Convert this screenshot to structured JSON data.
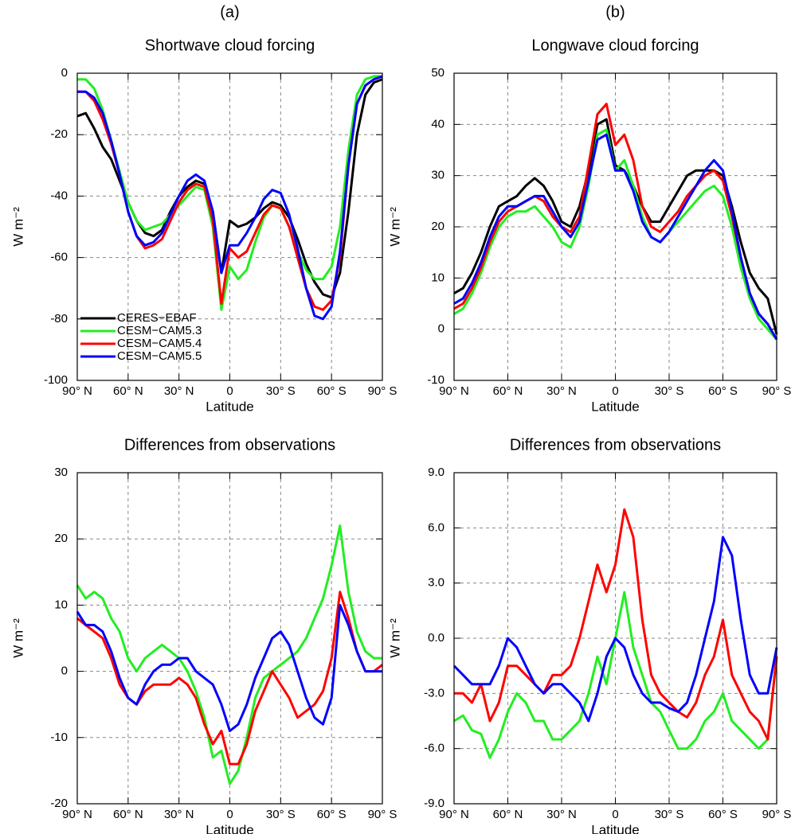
{
  "chart_data": [
    {
      "type": "line",
      "panel_label": "(a)",
      "title": "Shortwave cloud forcing",
      "xlabel": "Latitude",
      "ylabel": "W m⁻²",
      "x": [
        90,
        85,
        80,
        75,
        70,
        65,
        60,
        55,
        50,
        45,
        40,
        35,
        30,
        25,
        20,
        15,
        10,
        5,
        0,
        -5,
        -10,
        -15,
        -20,
        -25,
        -30,
        -35,
        -40,
        -45,
        -50,
        -55,
        -60,
        -65,
        -70,
        -75,
        -80,
        -85,
        -90
      ],
      "xlim": [
        90,
        -90
      ],
      "xticks": [
        {
          "value": 90,
          "label": "90° N"
        },
        {
          "value": 60,
          "label": "60° N"
        },
        {
          "value": 30,
          "label": "30° N"
        },
        0,
        {
          "value": -30,
          "label": "30° S"
        },
        {
          "value": -60,
          "label": "60° S"
        },
        {
          "value": -90,
          "label": "90° S"
        }
      ],
      "ylim": [
        -100,
        0
      ],
      "yticks": [
        -100,
        -80,
        -60,
        -40,
        -20,
        0
      ],
      "grid": true,
      "legend": "lower left",
      "series": [
        {
          "name": "CERES−EBAF",
          "color": "#000000",
          "values": [
            -14,
            -13,
            -18,
            -24,
            -28,
            -35,
            -42,
            -48,
            -52,
            -53,
            -51,
            -45,
            -40,
            -37,
            -35,
            -36,
            -45,
            -65,
            -48,
            -50,
            -49,
            -47,
            -44,
            -42,
            -43,
            -47,
            -54,
            -62,
            -68,
            -72,
            -73,
            -65,
            -45,
            -20,
            -7,
            -3,
            -2
          ]
        },
        {
          "name": "CESM−CAM5.3",
          "color": "#22ee22",
          "values": [
            -2,
            -2,
            -5,
            -12,
            -22,
            -32,
            -42,
            -48,
            -51,
            -50,
            -49,
            -46,
            -43,
            -40,
            -37,
            -38,
            -50,
            -77,
            -63,
            -67,
            -64,
            -55,
            -47,
            -43,
            -44,
            -50,
            -58,
            -64,
            -67,
            -67,
            -63,
            -50,
            -25,
            -7,
            -2,
            -1,
            -1
          ]
        },
        {
          "name": "CESM−CAM5.4",
          "color": "#ff0000",
          "values": [
            -6,
            -6,
            -9,
            -15,
            -23,
            -33,
            -45,
            -53,
            -57,
            -56,
            -54,
            -48,
            -42,
            -38,
            -36,
            -37,
            -48,
            -75,
            -57,
            -60,
            -58,
            -52,
            -46,
            -43,
            -44,
            -50,
            -60,
            -70,
            -76,
            -77,
            -74,
            -60,
            -30,
            -10,
            -4,
            -2,
            -1
          ]
        },
        {
          "name": "CESM−CAM5.5",
          "color": "#0000ff",
          "values": [
            -6,
            -6,
            -8,
            -13,
            -22,
            -33,
            -45,
            -53,
            -56,
            -55,
            -52,
            -46,
            -40,
            -35,
            -33,
            -35,
            -45,
            -65,
            -56,
            -56,
            -52,
            -47,
            -41,
            -38,
            -39,
            -46,
            -57,
            -70,
            -79,
            -80,
            -76,
            -58,
            -30,
            -10,
            -4,
            -2,
            -1
          ]
        }
      ]
    },
    {
      "type": "line",
      "panel_label": "(b)",
      "title": "Longwave cloud forcing",
      "xlabel": "Latitude",
      "ylabel": "W m⁻²",
      "x": [
        90,
        85,
        80,
        75,
        70,
        65,
        60,
        55,
        50,
        45,
        40,
        35,
        30,
        25,
        20,
        15,
        10,
        5,
        0,
        -5,
        -10,
        -15,
        -20,
        -25,
        -30,
        -35,
        -40,
        -45,
        -50,
        -55,
        -60,
        -65,
        -70,
        -75,
        -80,
        -85,
        -90
      ],
      "xlim": [
        90,
        -90
      ],
      "xticks": [
        {
          "value": 90,
          "label": "90° N"
        },
        {
          "value": 60,
          "label": "60° N"
        },
        {
          "value": 30,
          "label": "30° N"
        },
        0,
        {
          "value": -30,
          "label": "30° S"
        },
        {
          "value": -60,
          "label": "60° S"
        },
        {
          "value": -90,
          "label": "90° S"
        }
      ],
      "ylim": [
        -10,
        50
      ],
      "yticks": [
        -10,
        0,
        10,
        20,
        30,
        40,
        50
      ],
      "grid": true,
      "series": [
        {
          "color": "#000000",
          "values": [
            7,
            8,
            11,
            15,
            20,
            24,
            25,
            26,
            28,
            29.5,
            28,
            25,
            21,
            20,
            24,
            31,
            40,
            41,
            32,
            31,
            28,
            24,
            21,
            21,
            24,
            27,
            30,
            31,
            31,
            31,
            30,
            24,
            17,
            11,
            8,
            6,
            -1
          ]
        },
        {
          "color": "#22ee22",
          "values": [
            3,
            4,
            7,
            11,
            16,
            20,
            22,
            23,
            23,
            24,
            22,
            20,
            17,
            16,
            20,
            28,
            38,
            39,
            31,
            33,
            28,
            22,
            18,
            17,
            19,
            21,
            23,
            25,
            27,
            28,
            26,
            20,
            12,
            6,
            2,
            0,
            -2
          ]
        },
        {
          "color": "#ff0000",
          "values": [
            4,
            5,
            8,
            12,
            17,
            21,
            23,
            24,
            25,
            26,
            25,
            22,
            20,
            19,
            22,
            32,
            42,
            44,
            36,
            38,
            33,
            24,
            20,
            19,
            21,
            23,
            26,
            28,
            30,
            31,
            29,
            22,
            14,
            7,
            3,
            1,
            -2
          ]
        },
        {
          "color": "#0000ff",
          "values": [
            5,
            6,
            9,
            13,
            18,
            22,
            24,
            24,
            25,
            26,
            26,
            23,
            20,
            18,
            21,
            29,
            37,
            38,
            31,
            31,
            27,
            21,
            18,
            17,
            19,
            22,
            25,
            28,
            31,
            33,
            31,
            23,
            14,
            7,
            3,
            1,
            -2
          ]
        }
      ]
    },
    {
      "type": "line",
      "title": "Differences from observations",
      "xlabel": "Latitude",
      "ylabel": "W m⁻²",
      "x": [
        90,
        85,
        80,
        75,
        70,
        65,
        60,
        55,
        50,
        45,
        40,
        35,
        30,
        25,
        20,
        15,
        10,
        5,
        0,
        -5,
        -10,
        -15,
        -20,
        -25,
        -30,
        -35,
        -40,
        -45,
        -50,
        -55,
        -60,
        -65,
        -70,
        -75,
        -80,
        -85,
        -90
      ],
      "xlim": [
        90,
        -90
      ],
      "xticks": [
        {
          "value": 90,
          "label": "90° N"
        },
        {
          "value": 60,
          "label": "60° N"
        },
        {
          "value": 30,
          "label": "30° N"
        },
        0,
        {
          "value": -30,
          "label": "30° S"
        },
        {
          "value": -60,
          "label": "60° S"
        },
        {
          "value": -90,
          "label": "90° S"
        }
      ],
      "ylim": [
        -20,
        30
      ],
      "yticks": [
        -20,
        -10,
        0,
        10,
        20,
        30
      ],
      "grid": true,
      "series": [
        {
          "color": "#22ee22",
          "values": [
            13,
            11,
            12,
            11,
            8,
            6,
            2,
            0,
            2,
            3,
            4,
            3,
            2,
            0,
            -3,
            -7,
            -13,
            -12,
            -17,
            -15,
            -10,
            -4,
            -1,
            0,
            1,
            2,
            3,
            5,
            8,
            11,
            16,
            22,
            12,
            6,
            3,
            2,
            2
          ]
        },
        {
          "color": "#ff0000",
          "values": [
            8,
            7,
            6,
            5,
            2,
            -2,
            -4,
            -5,
            -3,
            -2,
            -2,
            -2,
            -1,
            -2,
            -4,
            -8,
            -11,
            -9,
            -14,
            -14,
            -11,
            -6,
            -3,
            0,
            -2,
            -4,
            -7,
            -6,
            -5,
            -3,
            2,
            12,
            8,
            3,
            0,
            0,
            1
          ]
        },
        {
          "color": "#0000ff",
          "values": [
            9,
            7,
            7,
            6,
            3,
            -1,
            -4,
            -5,
            -2,
            0,
            1,
            1,
            2,
            2,
            0,
            -1,
            -2,
            -5,
            -9,
            -8,
            -5,
            -1,
            2,
            5,
            6,
            4,
            0,
            -4,
            -7,
            -8,
            -4,
            10,
            7,
            3,
            0,
            0,
            0
          ]
        }
      ]
    },
    {
      "type": "line",
      "title": "Differences from observations",
      "xlabel": "Latitude",
      "ylabel": "W m⁻²",
      "x": [
        90,
        85,
        80,
        75,
        70,
        65,
        60,
        55,
        50,
        45,
        40,
        35,
        30,
        25,
        20,
        15,
        10,
        5,
        0,
        -5,
        -10,
        -15,
        -20,
        -25,
        -30,
        -35,
        -40,
        -45,
        -50,
        -55,
        -60,
        -65,
        -70,
        -75,
        -80,
        -85,
        -90
      ],
      "xlim": [
        90,
        -90
      ],
      "xticks": [
        {
          "value": 90,
          "label": "90° N"
        },
        {
          "value": 60,
          "label": "60° N"
        },
        {
          "value": 30,
          "label": "30° N"
        },
        0,
        {
          "value": -30,
          "label": "30° S"
        },
        {
          "value": -60,
          "label": "60° S"
        },
        {
          "value": -90,
          "label": "90° S"
        }
      ],
      "ylim": [
        -9,
        9
      ],
      "yticks": [
        {
          "value": -9,
          "label": "-9.0"
        },
        {
          "value": -6,
          "label": "-6.0"
        },
        {
          "value": -3,
          "label": "-3.0"
        },
        {
          "value": 0,
          "label": "0.0"
        },
        {
          "value": 3,
          "label": "3.0"
        },
        {
          "value": 6,
          "label": "6.0"
        },
        {
          "value": 9,
          "label": "9.0"
        }
      ],
      "grid": true,
      "series": [
        {
          "color": "#22ee22",
          "values": [
            -4.5,
            -4.2,
            -5,
            -5.2,
            -6.5,
            -5.5,
            -4,
            -3,
            -3.5,
            -4.5,
            -4.5,
            -5.5,
            -5.5,
            -5,
            -4.5,
            -3,
            -1,
            -2.5,
            0,
            2.5,
            -0.5,
            -2,
            -3.5,
            -4,
            -5,
            -6,
            -6,
            -5.5,
            -4.5,
            -4,
            -3,
            -4.5,
            -5,
            -5.5,
            -6,
            -5.5,
            -1
          ]
        },
        {
          "color": "#ff0000",
          "values": [
            -3,
            -3,
            -3.5,
            -2.5,
            -4.5,
            -3.5,
            -1.5,
            -1.5,
            -2,
            -2.5,
            -3,
            -2,
            -2,
            -1.5,
            0,
            2,
            4,
            2.5,
            4,
            7,
            5.5,
            1,
            -2,
            -3,
            -3.5,
            -4,
            -4.3,
            -3.5,
            -2,
            -1,
            1,
            -2,
            -3,
            -4,
            -4.5,
            -5.5,
            -1
          ]
        },
        {
          "color": "#0000ff",
          "values": [
            -1.5,
            -2,
            -2.5,
            -2.5,
            -2.5,
            -1.5,
            0,
            -0.5,
            -1.5,
            -2.5,
            -3,
            -2.5,
            -2.5,
            -3,
            -3.5,
            -4.5,
            -3,
            -1,
            0,
            -0.5,
            -2,
            -3,
            -3.5,
            -3.5,
            -3.8,
            -4,
            -3.5,
            -2,
            0,
            2,
            5.5,
            4.5,
            1,
            -2,
            -3,
            -3,
            -0.5
          ]
        }
      ]
    }
  ]
}
